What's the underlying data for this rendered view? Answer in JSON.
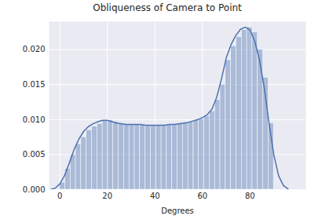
{
  "chart_data": {
    "type": "histogram",
    "title": "Obliqueness of Camera to Point",
    "x_label": "Degrees",
    "bins": [
      0,
      2.25,
      4.5,
      6.75,
      9,
      11.25,
      13.5,
      15.75,
      18,
      20.25,
      22.5,
      24.75,
      27,
      29.25,
      31.5,
      33.75,
      36,
      38.25,
      40.5,
      42.75,
      45,
      47.25,
      49.5,
      51.75,
      54,
      56.25,
      58.5,
      60.75,
      63,
      65.25,
      67.5,
      69.75,
      72,
      74.25,
      76.5,
      78.75,
      81,
      83.25,
      85.5,
      87.75,
      90
    ],
    "values": [
      0.001,
      0.003,
      0.005,
      0.0065,
      0.0075,
      0.0085,
      0.009,
      0.0094,
      0.0098,
      0.0099,
      0.0097,
      0.0095,
      0.0093,
      0.0093,
      0.0093,
      0.0093,
      0.0092,
      0.0092,
      0.0092,
      0.0092,
      0.0093,
      0.0093,
      0.0094,
      0.0095,
      0.0097,
      0.0099,
      0.0101,
      0.0105,
      0.0112,
      0.0128,
      0.015,
      0.0185,
      0.0205,
      0.0218,
      0.0228,
      0.0232,
      0.0225,
      0.02,
      0.016,
      0.0095
    ],
    "color": "#4c72b0",
    "series": [
      {
        "type": "line",
        "color": "#4c72b0",
        "x": [
          -4,
          -2,
          0,
          2,
          4,
          6,
          8,
          10,
          12,
          14,
          16,
          18,
          20,
          22,
          24,
          26,
          28,
          30,
          32,
          34,
          36,
          38,
          40,
          42,
          44,
          46,
          48,
          50,
          52,
          54,
          56,
          58,
          60,
          62,
          64,
          66,
          68,
          70,
          72,
          74,
          76,
          78,
          80,
          82,
          84,
          86,
          88,
          90,
          92,
          94,
          96
        ],
        "values": [
          0,
          0.0002,
          0.0008,
          0.002,
          0.0038,
          0.0057,
          0.0072,
          0.0083,
          0.009,
          0.0094,
          0.0097,
          0.0099,
          0.0099,
          0.0097,
          0.0095,
          0.0094,
          0.0093,
          0.0093,
          0.0093,
          0.0093,
          0.0092,
          0.0092,
          0.0092,
          0.0092,
          0.0092,
          0.0093,
          0.0093,
          0.0094,
          0.0095,
          0.0096,
          0.0098,
          0.01,
          0.0103,
          0.0107,
          0.0115,
          0.0132,
          0.0158,
          0.0188,
          0.0207,
          0.022,
          0.0229,
          0.0232,
          0.0228,
          0.0212,
          0.0185,
          0.0145,
          0.0095,
          0.005,
          0.002,
          0.0006,
          0.0001
        ]
      }
    ],
    "xlim": [
      -4.5,
      103.5
    ],
    "ylim": [
      0,
      0.024
    ],
    "xticks": [
      0,
      20,
      40,
      60,
      80
    ],
    "yticks": [
      {
        "value": 0,
        "label": "0.000"
      },
      {
        "value": 0.005,
        "label": "0.005"
      },
      {
        "value": 0.01,
        "label": "0.010"
      },
      {
        "value": 0.015,
        "label": "0.015"
      },
      {
        "value": 0.02,
        "label": "0.020"
      }
    ],
    "grid": true
  }
}
